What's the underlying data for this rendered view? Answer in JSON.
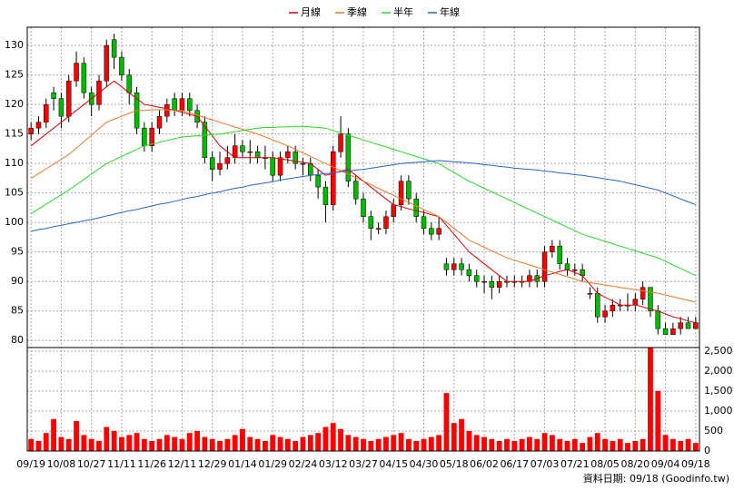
{
  "chart_data": {
    "type": "candlestick",
    "categories": [
      "09/19",
      null,
      null,
      null,
      "10/08",
      null,
      null,
      null,
      "10/27",
      null,
      null,
      null,
      "11/11",
      null,
      null,
      null,
      "11/26",
      null,
      null,
      null,
      "12/11",
      null,
      null,
      null,
      "12/29",
      null,
      null,
      null,
      "01/14",
      null,
      null,
      null,
      "01/29",
      null,
      null,
      null,
      "02/24",
      null,
      null,
      null,
      "03/12",
      null,
      null,
      null,
      "03/27",
      null,
      null,
      null,
      "04/15",
      null,
      null,
      null,
      "04/30",
      null,
      null,
      null,
      "05/18",
      null,
      null,
      null,
      "06/02",
      null,
      null,
      null,
      "06/17",
      null,
      null,
      null,
      "07/03",
      null,
      null,
      null,
      "07/21",
      null,
      null,
      null,
      "08/05",
      null,
      null,
      null,
      "08/20",
      null,
      null,
      null,
      "09/04",
      null,
      null,
      null,
      "09/18"
    ],
    "open": [
      115,
      116,
      117,
      122,
      121,
      118,
      124,
      127,
      122,
      120,
      124,
      131,
      128,
      125,
      122,
      116,
      113,
      116,
      118,
      121,
      119,
      121,
      119,
      117,
      111,
      109,
      110,
      111,
      113,
      112,
      112,
      111,
      111,
      108,
      111,
      112,
      110,
      110,
      108,
      106,
      103,
      112,
      115,
      107,
      104,
      101,
      99,
      99,
      101,
      103,
      107,
      104,
      101,
      99,
      98,
      93,
      92,
      93,
      92,
      91,
      90,
      90,
      89,
      90,
      90,
      90,
      90,
      91,
      90,
      95,
      96,
      93,
      92,
      92,
      88,
      88,
      84,
      85,
      86,
      86,
      86,
      87,
      89,
      85,
      82,
      81,
      82,
      83,
      82
    ],
    "high": [
      117,
      118,
      121,
      123,
      122,
      125,
      129,
      128,
      123,
      125,
      131,
      132,
      129,
      126,
      123,
      117,
      117,
      119,
      121,
      122,
      122,
      122,
      120,
      118,
      112,
      112,
      113,
      115,
      114,
      114,
      113,
      113,
      112,
      112,
      113,
      113,
      111,
      111,
      109,
      107,
      113,
      118,
      116,
      108,
      105,
      102,
      100,
      102,
      104,
      108,
      108,
      105,
      102,
      100,
      101,
      94,
      94,
      94,
      93,
      92,
      91,
      91,
      91,
      91,
      91,
      91,
      92,
      92,
      96,
      97,
      97,
      94,
      93,
      93,
      89,
      89,
      86,
      87,
      87,
      88,
      88,
      90,
      89,
      86,
      83,
      83,
      84,
      84,
      84
    ],
    "low": [
      114,
      115,
      116,
      119,
      116,
      117,
      123,
      121,
      118,
      119,
      123,
      126,
      124,
      120,
      115,
      112,
      112,
      115,
      117,
      118,
      118,
      118,
      116,
      110,
      107,
      108,
      109,
      110,
      111,
      110,
      110,
      109,
      107,
      107,
      110,
      109,
      108,
      107,
      104,
      100,
      102,
      111,
      106,
      103,
      100,
      97,
      98,
      98,
      100,
      102,
      103,
      100,
      98,
      97,
      97,
      91,
      91,
      91,
      90,
      89,
      88,
      87,
      88,
      89,
      89,
      89,
      89,
      89,
      89,
      94,
      92,
      91,
      91,
      90,
      87,
      83,
      83,
      84,
      85,
      85,
      85,
      86,
      84,
      81,
      81,
      81,
      81,
      82,
      82
    ],
    "close": [
      116,
      117,
      120,
      121,
      118,
      124,
      127,
      122,
      120,
      124,
      130,
      128,
      125,
      122,
      116,
      113,
      116,
      118,
      120,
      119,
      121,
      119,
      117,
      111,
      109,
      110,
      111,
      113,
      112,
      112,
      111,
      111,
      108,
      111,
      112,
      110,
      110,
      108,
      106,
      103,
      112,
      115,
      107,
      104,
      101,
      99,
      99,
      101,
      103,
      107,
      104,
      101,
      99,
      98,
      99,
      92,
      93,
      92,
      91,
      90,
      90,
      89,
      90,
      90,
      90,
      90,
      91,
      90,
      95,
      96,
      93,
      92,
      92,
      91,
      88,
      84,
      85,
      86,
      86,
      86,
      87,
      89,
      85,
      82,
      81,
      82,
      83,
      82,
      83
    ],
    "volume": [
      300,
      250,
      450,
      800,
      350,
      300,
      750,
      400,
      300,
      250,
      600,
      500,
      350,
      400,
      450,
      300,
      250,
      300,
      400,
      350,
      300,
      450,
      500,
      350,
      300,
      250,
      300,
      400,
      550,
      350,
      300,
      250,
      400,
      350,
      300,
      250,
      350,
      400,
      450,
      600,
      700,
      550,
      400,
      350,
      300,
      250,
      300,
      350,
      400,
      450,
      300,
      250,
      300,
      350,
      400,
      1450,
      700,
      800,
      500,
      400,
      350,
      300,
      250,
      300,
      250,
      300,
      350,
      300,
      450,
      400,
      300,
      250,
      300,
      200,
      350,
      450,
      300,
      250,
      300,
      200,
      250,
      300,
      2600,
      1500,
      400,
      300,
      250,
      300,
      200
    ],
    "up_color": "#ff0000",
    "down_color": "#00bb00",
    "volume_color": "#ff0000",
    "series": [
      {
        "name": "月線",
        "color": "#e00000",
        "values": [
          113,
          114,
          115,
          116,
          117,
          118,
          119,
          120,
          121,
          122,
          123,
          124,
          123,
          122,
          121,
          120,
          119.8,
          119.5,
          119.3,
          119,
          118.7,
          118.3,
          118,
          116.3,
          114.7,
          113,
          112,
          111,
          111,
          111,
          111,
          111,
          111,
          110.8,
          110.6,
          110.4,
          110.2,
          110,
          109,
          108,
          108.3,
          108.7,
          109,
          108,
          107,
          106,
          105,
          104,
          103,
          102.7,
          102.3,
          102,
          101.7,
          101.3,
          101,
          99.5,
          98,
          96.5,
          95,
          94,
          93,
          92,
          91,
          90,
          90,
          90,
          90,
          90.5,
          91,
          91.3,
          91.7,
          92,
          91.5,
          91,
          89.5,
          88,
          87.3,
          86.7,
          86,
          86,
          86,
          85.7,
          85.3,
          85,
          84.5,
          84,
          83.7,
          83.3,
          83
        ]
      },
      {
        "name": "季線",
        "color": "#ee7722",
        "values": [
          107.5,
          108.3,
          109.1,
          109.9,
          110.7,
          111.5,
          112.6,
          113.7,
          114.8,
          115.9,
          117,
          117.5,
          118,
          118.5,
          119,
          119,
          119.1,
          119.1,
          119.1,
          119,
          119,
          118.6,
          118.2,
          117.8,
          117.4,
          117,
          116.6,
          116.2,
          115.8,
          115.4,
          115,
          114.5,
          114,
          113.5,
          113,
          112.4,
          111.8,
          111.2,
          110.6,
          110,
          109.4,
          108.8,
          108.2,
          107.6,
          107,
          106.4,
          105.8,
          105.2,
          104.6,
          104,
          103.4,
          102.8,
          102.2,
          101.6,
          101,
          100,
          99,
          98,
          97,
          96.4,
          95.8,
          95.2,
          94.6,
          94,
          93.6,
          93.2,
          92.8,
          92.4,
          92,
          91.6,
          91.2,
          90.8,
          90.4,
          90,
          89.8,
          89.6,
          89.4,
          89.2,
          89,
          88.8,
          88.6,
          88.4,
          88.2,
          88,
          87.7,
          87.4,
          87.1,
          86.8,
          86.5
        ]
      },
      {
        "name": "半年",
        "color": "#22dd22",
        "values": [
          101.5,
          102.3,
          103.1,
          103.9,
          104.7,
          105.5,
          106.4,
          107.3,
          108.2,
          109.1,
          110,
          110.6,
          111.2,
          111.8,
          112.4,
          113,
          113.3,
          113.6,
          113.9,
          114.2,
          114.5,
          114.6,
          114.7,
          114.8,
          114.9,
          115,
          115.2,
          115.4,
          115.6,
          115.8,
          116,
          116.1,
          116.1,
          116.2,
          116.2,
          116.3,
          116.3,
          116.2,
          116.1,
          116,
          115.6,
          115.2,
          114.8,
          114.4,
          114,
          113.6,
          113.2,
          112.8,
          112.4,
          112,
          111.6,
          111.2,
          110.8,
          110.4,
          110,
          109.2,
          108.5,
          107.7,
          107,
          106.4,
          105.8,
          105.2,
          104.6,
          104,
          103.4,
          102.8,
          102.2,
          101.6,
          101,
          100.4,
          99.8,
          99.2,
          98.6,
          98,
          97.6,
          97.2,
          96.8,
          96.4,
          96,
          95.6,
          95.2,
          94.8,
          94.4,
          94,
          93.4,
          92.8,
          92.2,
          91.6,
          91
        ]
      },
      {
        "name": "年線",
        "color": "#2266cc",
        "values": [
          98.5,
          98.8,
          99,
          99.3,
          99.5,
          99.8,
          100,
          100.3,
          100.5,
          100.8,
          101.1,
          101.4,
          101.7,
          102,
          102.2,
          102.5,
          102.8,
          103.1,
          103.3,
          103.6,
          103.9,
          104.2,
          104.4,
          104.7,
          105,
          105.2,
          105.5,
          105.8,
          106,
          106.3,
          106.5,
          106.7,
          106.9,
          107.2,
          107.4,
          107.6,
          107.8,
          108,
          108.1,
          108.3,
          108.4,
          108.6,
          108.7,
          108.9,
          109,
          109.2,
          109.4,
          109.6,
          109.8,
          110,
          110.1,
          110.2,
          110.3,
          110.4,
          110.5,
          110.4,
          110.3,
          110.2,
          110.1,
          110,
          109.8,
          109.7,
          109.5,
          109.4,
          109.2,
          109.1,
          109,
          108.9,
          108.7,
          108.6,
          108.4,
          108.3,
          108.1,
          108,
          107.8,
          107.6,
          107.4,
          107.2,
          107,
          106.7,
          106.4,
          106.1,
          105.8,
          105.5,
          105,
          104.5,
          104,
          103.5,
          103
        ]
      }
    ],
    "ylim": [
      78.8,
      133.1
    ],
    "yticks": [
      80,
      85,
      90,
      95,
      100,
      105,
      110,
      115,
      120,
      125,
      130
    ],
    "y2lim": [
      0,
      2590
    ],
    "y2ticks": [
      0,
      500,
      {
        "value": 1000,
        "label": "1,000"
      },
      {
        "value": 1500,
        "label": "1,500"
      },
      {
        "value": 2000,
        "label": "2,000"
      },
      {
        "value": 2500,
        "label": "2,500"
      }
    ],
    "grid": true,
    "footnote": "資料日期: 09/18 (Goodinfo.tw)"
  }
}
